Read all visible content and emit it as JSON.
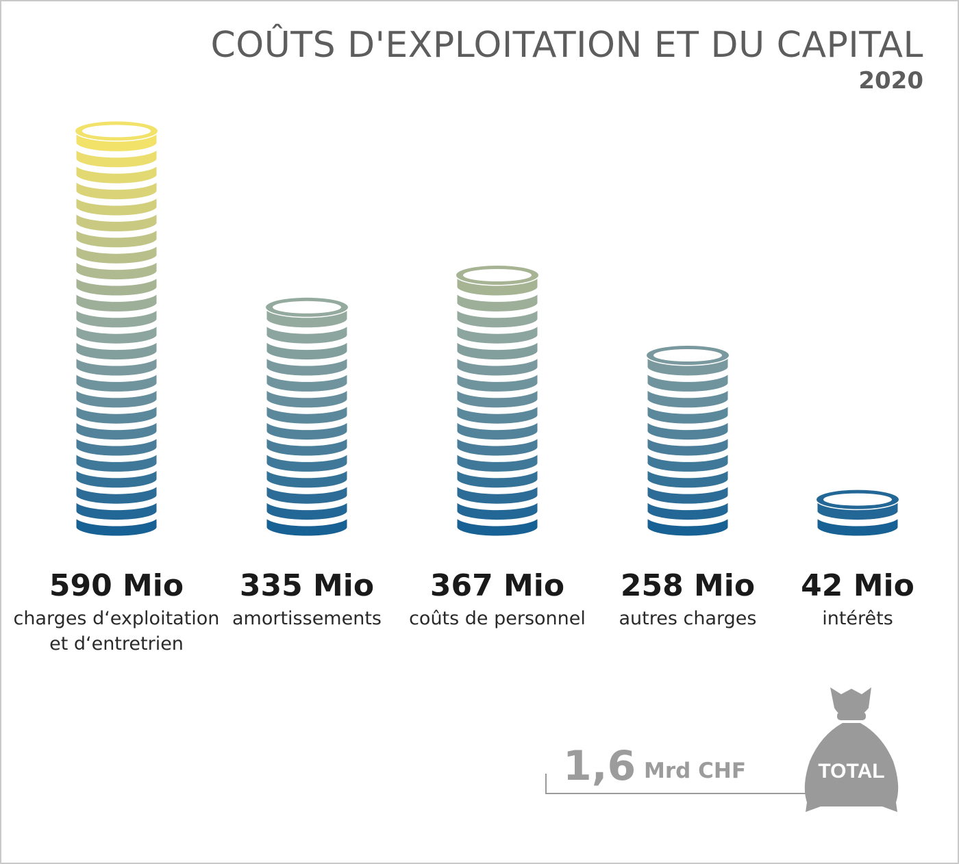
{
  "title": "COÛTS D'EXPLOITATION ET DU CAPITAL",
  "subtitle": "2020",
  "chart_data": {
    "type": "bar",
    "title": "COÛTS D'EXPLOITATION ET DU CAPITAL",
    "subtitle": "2020",
    "categories": [
      "charges d‘exploitation et d‘entretrien",
      "amortissements",
      "coûts de personnel",
      "autres charges",
      "intérêts"
    ],
    "categories_display": [
      [
        "charges d‘exploitation",
        "et d‘entretrien"
      ],
      [
        "amortissements"
      ],
      [
        "coûts de personnel"
      ],
      [
        "autres charges"
      ],
      [
        "intérêts"
      ]
    ],
    "values": [
      590,
      335,
      367,
      258,
      42
    ],
    "value_labels": [
      "590 Mio",
      "335 Mio",
      "367 Mio",
      "258 Mio",
      "42 Mio"
    ],
    "unit": "Mio",
    "gradient_colors": {
      "top": "#f2e26a",
      "bottom": "#0e5b93"
    }
  },
  "total": {
    "value": "1,6",
    "unit": "Mrd CHF",
    "badge": "TOTAL"
  },
  "icons": [
    "money-bag-icon"
  ],
  "colors": {
    "title": "#5d5d5d",
    "total": "#9c9c9c",
    "bag": "#9a9a9a"
  }
}
